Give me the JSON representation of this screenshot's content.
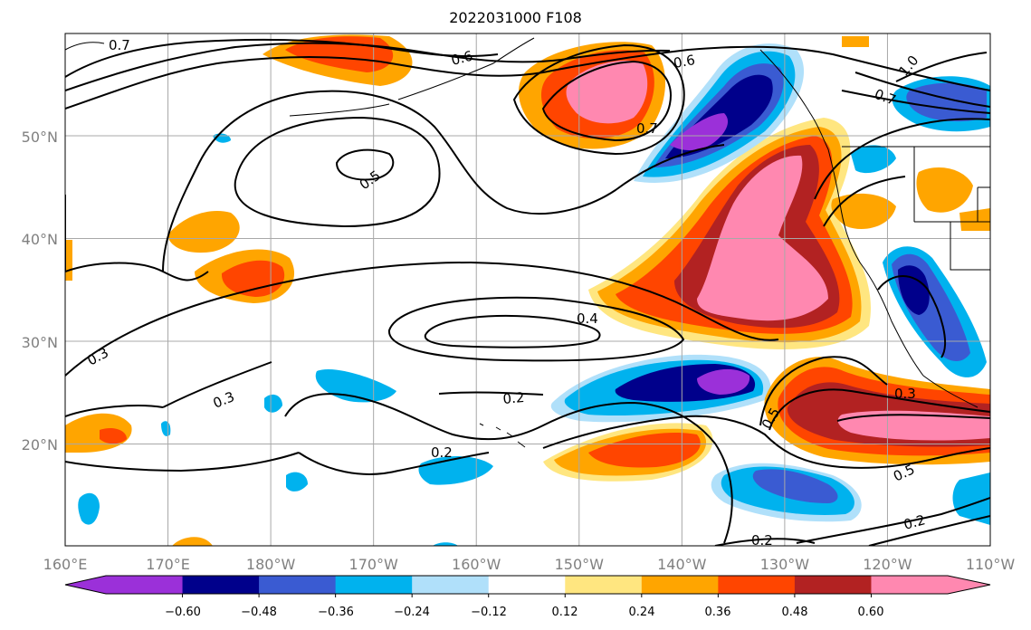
{
  "title": "2022031000 F108",
  "map": {
    "lon_labels": [
      "160°E",
      "170°E",
      "180°W",
      "170°W",
      "160°W",
      "150°W",
      "140°W",
      "130°W",
      "120°W",
      "110°W"
    ],
    "lat_labels": [
      "50°N",
      "40°N",
      "30°N",
      "20°N"
    ],
    "grid": true,
    "contour_labels": [
      "0.7",
      "0.6",
      "0.6",
      "0.7",
      "0.5",
      "0.4",
      "0.3",
      "0.3",
      "0.2",
      "0.2",
      "0.2",
      "0.3",
      "0.5",
      "0.5",
      "0.7",
      "1.0",
      "0.2"
    ]
  },
  "colorbar": {
    "ticks": [
      "−0.60",
      "−0.48",
      "−0.36",
      "−0.24",
      "−0.12",
      "0.12",
      "0.24",
      "0.36",
      "0.48",
      "0.60"
    ],
    "colors": [
      "#9b30d9",
      "#00008b",
      "#3a5bd2",
      "#00b2ee",
      "#b0e0fa",
      "#ffffff",
      "#ffe680",
      "#ffa500",
      "#ff4500",
      "#b22222",
      "#ff88b0"
    ]
  }
}
